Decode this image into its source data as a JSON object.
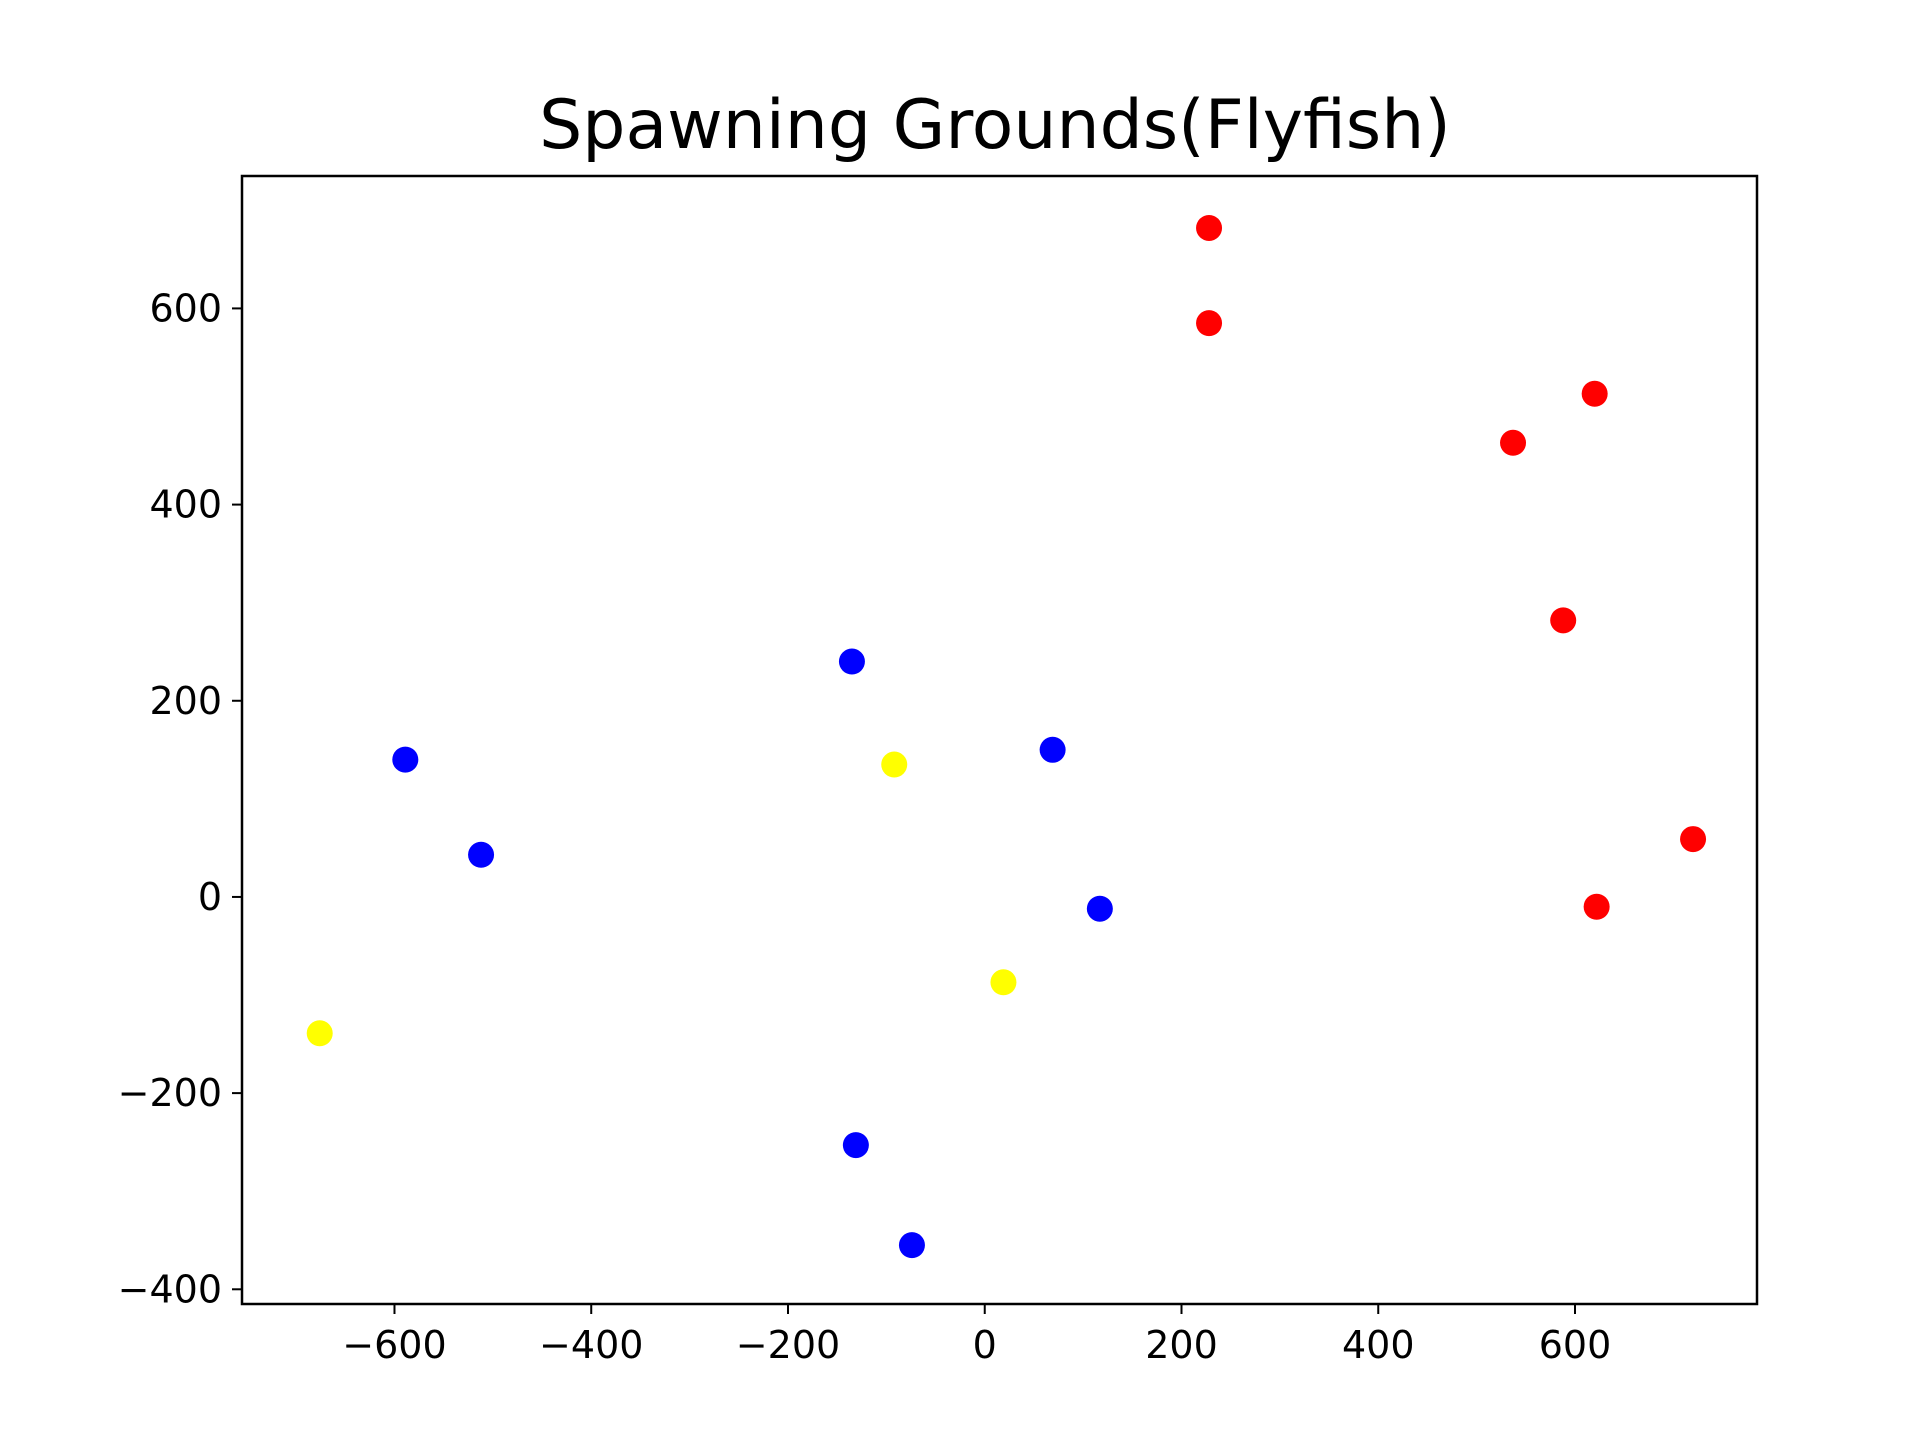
{
  "chart_data": {
    "type": "scatter",
    "title": "Spawning Grounds(Flyfish)",
    "xlabel": "",
    "ylabel": "",
    "xlim": [
      -755,
      785
    ],
    "ylim": [
      -415,
      735
    ],
    "x_ticks": [
      -600,
      -400,
      -200,
      0,
      200,
      400,
      600
    ],
    "y_ticks": [
      -400,
      -200,
      0,
      200,
      400,
      600
    ],
    "grid": false,
    "legend": "none",
    "series": [
      {
        "color": "#ff0000",
        "points": [
          {
            "x": 228,
            "y": 682
          },
          {
            "x": 228,
            "y": 585
          },
          {
            "x": 620,
            "y": 513
          },
          {
            "x": 537,
            "y": 463
          },
          {
            "x": 588,
            "y": 282
          },
          {
            "x": 720,
            "y": 59
          },
          {
            "x": 622,
            "y": -10
          }
        ]
      },
      {
        "color": "#0000ff",
        "points": [
          {
            "x": -135,
            "y": 240
          },
          {
            "x": -589,
            "y": 140
          },
          {
            "x": -512,
            "y": 43
          },
          {
            "x": 69,
            "y": 150
          },
          {
            "x": 117,
            "y": -12
          },
          {
            "x": -131,
            "y": -253
          },
          {
            "x": -74,
            "y": -355
          }
        ]
      },
      {
        "color": "#ffff00",
        "points": [
          {
            "x": -92,
            "y": 135
          },
          {
            "x": 19,
            "y": -87
          },
          {
            "x": -676,
            "y": -139
          }
        ]
      }
    ]
  }
}
